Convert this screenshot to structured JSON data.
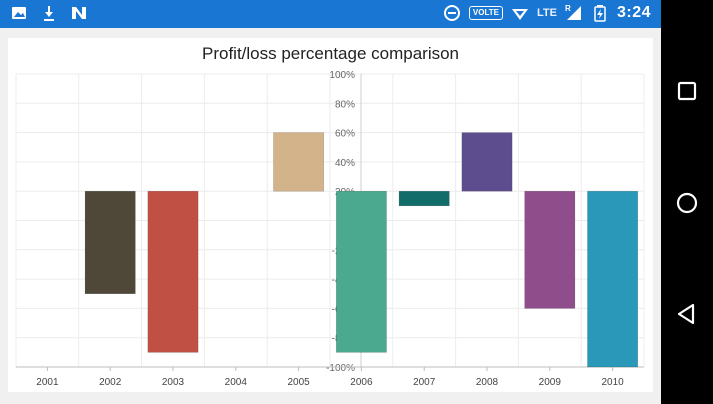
{
  "status_bar": {
    "time": "3:24",
    "volte": "VOLTE",
    "network": "LTE",
    "roaming": "R",
    "icons": [
      "image-icon",
      "download-icon",
      "n-app-icon",
      "data-saver-icon",
      "wifi-icon",
      "signal-icon",
      "battery-icon"
    ]
  },
  "nav_bar": {
    "icons": [
      "recents-square-icon",
      "home-circle-icon",
      "back-triangle-icon"
    ]
  },
  "chart_data": {
    "type": "bar",
    "title": "Profit/loss percentage comparison",
    "categories": [
      "2001",
      "2002",
      "2003",
      "2004",
      "2005",
      "2006",
      "2007",
      "2008",
      "2009",
      "2010"
    ],
    "values": [
      20,
      -50,
      -90,
      20,
      60,
      -90,
      10,
      60,
      -60,
      -100
    ],
    "baseline": 20,
    "colors": [
      "#fbbc1b",
      "#4f4839",
      "#c04f44",
      "#90a84c",
      "#d3b389",
      "#4aa98f",
      "#126c6a",
      "#5e4d8e",
      "#8f4d8c",
      "#2a98b8"
    ],
    "ylim": [
      -100,
      100
    ],
    "yticks": [
      "-100%",
      "-80%",
      "-60%",
      "-40%",
      "-20%",
      "0%",
      "20%",
      "40%",
      "60%",
      "80%",
      "100%"
    ],
    "grid": true
  }
}
